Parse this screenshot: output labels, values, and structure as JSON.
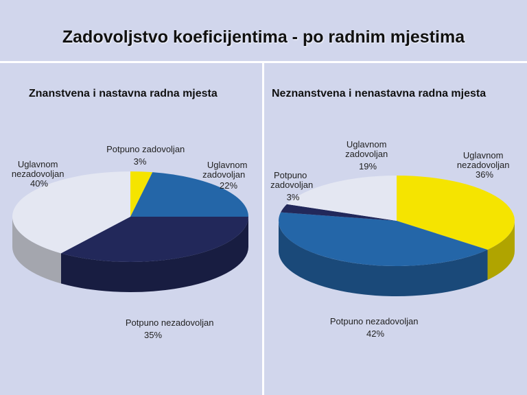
{
  "title": "Zadovoljstvo koeficijentima - po radnim mjestima",
  "colors": {
    "background": "#d1d6ec",
    "potpuno_zadovoljan_left": "#f5e400",
    "uglavnom_zadovoljan_left": "#2466a8",
    "potpuno_nezadovoljan_left": "#22285a",
    "uglavnom_nezadovoljan_left": "#e4e7f2",
    "uglavnom_nezadovoljan_right": "#f5e400",
    "potpuno_nezadovoljan_right": "#2466a8",
    "potpuno_zadovoljan_right": "#22285a",
    "uglavnom_zadovoljan_right": "#e4e7f2"
  },
  "chart_data": [
    {
      "type": "pie",
      "title": "Znanstvena i nastavna radna mjesta",
      "slices": [
        {
          "label": "Potpuno zadovoljan",
          "value": 3
        },
        {
          "label": "Uglavnom zadovoljan",
          "value": 22
        },
        {
          "label": "Potpuno nezadovoljan",
          "value": 35
        },
        {
          "label": "Uglavnom nezadovoljan",
          "value": 40
        }
      ],
      "value_labels": [
        "3%",
        "22%",
        "35%",
        "40%"
      ]
    },
    {
      "type": "pie",
      "title": "Neznanstvena i nenastavna radna mjesta",
      "slices": [
        {
          "label": "Uglavnom nezadovoljan",
          "value": 36
        },
        {
          "label": "Potpuno nezadovoljan",
          "value": 42
        },
        {
          "label": "Potpuno zadovoljan",
          "value": 3
        },
        {
          "label": "Uglavnom zadovoljan",
          "value": 19
        }
      ],
      "value_labels": [
        "36%",
        "42%",
        "3%",
        "19%"
      ]
    }
  ],
  "label_lines": {
    "left": {
      "potpuno_zadovoljan": [
        "Potpuno zadovoljan",
        "3%"
      ],
      "uglavnom_zadovoljan": [
        "Uglavnom",
        "zadovoljan",
        "22%"
      ],
      "potpuno_nezadovoljan": [
        "Potpuno nezadovoljan",
        "35%"
      ],
      "uglavnom_nezadovoljan": [
        "Uglavnom",
        "nezadovoljan",
        "40%"
      ]
    },
    "right": {
      "uglavnom_nezadovoljan": [
        "Uglavnom",
        "nezadovoljan",
        "36%"
      ],
      "potpuno_nezadovoljan": [
        "Potpuno nezadovoljan",
        "42%"
      ],
      "potpuno_zadovoljan": [
        "Potpuno",
        "zadovoljan",
        "3%"
      ],
      "uglavnom_zadovoljan": [
        "Uglavnom",
        "zadovoljan",
        "19%"
      ]
    }
  }
}
